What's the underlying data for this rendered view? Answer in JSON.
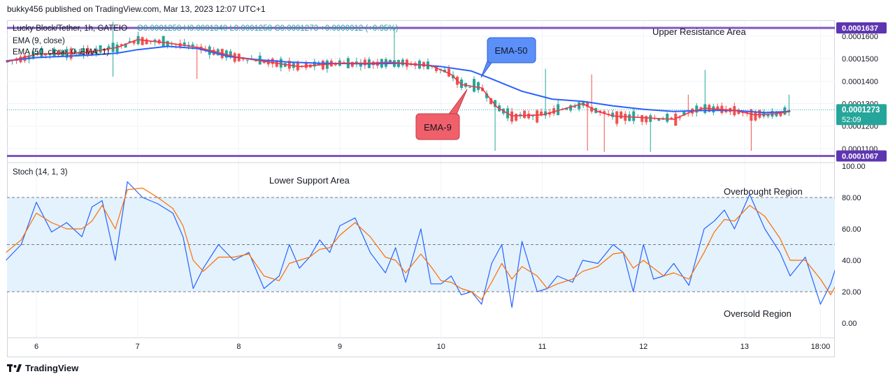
{
  "header": {
    "text": "bukky456 published on TradingView.com, Mar 13, 2023 12:07 UTC+1"
  },
  "legend": {
    "title": "Lucky Block/Tether, 1h, GATEIO",
    "ohlc": "O0.0001258  H0.0001340  L0.0001258  C0.0001273  +0.0000012 (+0.95%)",
    "ema9": "EMA (9, close)",
    "ema50": "EMA (50, close, 0, EMA, 1)"
  },
  "stoch_legend": "Stoch (14, 1, 3)",
  "annotations": {
    "upper_resistance": "Upper Resistance Area",
    "lower_support": "Lower Support Area",
    "overbought": "Overbought Region",
    "oversold": "Oversold Region",
    "ema50_callout": "EMA-50",
    "ema9_callout": "EMA-9"
  },
  "footer": {
    "brand": "TradingView",
    "logo_text": "17"
  },
  "colors": {
    "up": "#26a69a",
    "down": "#ef5350",
    "ema9": "#f23645",
    "ema50": "#2962ff",
    "resistance_line": "#7e57c2",
    "stoch_k": "#2962ff",
    "stoch_d": "#ff6d00",
    "stoch_band": "#e3f2fd",
    "ema50_callout": "#5b8ff9",
    "ema9_callout": "#f0606a"
  },
  "chart_data": [
    {
      "type": "candlestick",
      "title": "Lucky Block/Tether, 1h, GATEIO",
      "y_unit": "USDT",
      "y_ticks": [
        "0.0001600",
        "0.0001500",
        "0.0001400",
        "0.0001300",
        "0.0001200",
        "0.0001100"
      ],
      "ylim": [
        0.000105,
        0.0001665
      ],
      "x_ticks": [
        "6",
        "7",
        "8",
        "9",
        "10",
        "11",
        "12",
        "13",
        "18:00"
      ],
      "last_price": "0.0001273",
      "countdown": "52:09",
      "resistance_label": "0.0001637",
      "support_label": "0.0001067",
      "resistance_level": 0.0001637,
      "support_level": 0.0001067,
      "ohlc_last": {
        "open": 0.0001258,
        "high": 0.000134,
        "low": 0.0001258,
        "close": 0.0001273,
        "change": 1.2e-06,
        "change_pct": 0.95
      },
      "ema9_path": [
        [
          5.7,
          0.0001485
        ],
        [
          6.0,
          0.000152
        ],
        [
          6.5,
          0.0001528
        ],
        [
          6.8,
          0.000155
        ],
        [
          7.0,
          0.0001585
        ],
        [
          7.3,
          0.000157
        ],
        [
          7.6,
          0.000155
        ],
        [
          8.0,
          0.0001505
        ],
        [
          8.3,
          0.0001485
        ],
        [
          8.6,
          0.0001465
        ],
        [
          9.0,
          0.000148
        ],
        [
          9.3,
          0.000148
        ],
        [
          9.5,
          0.0001485
        ],
        [
          9.6,
          0.000148
        ],
        [
          9.9,
          0.000147
        ],
        [
          10.1,
          0.000143
        ],
        [
          10.2,
          0.0001385
        ],
        [
          10.4,
          0.000137
        ],
        [
          10.55,
          0.0001285
        ],
        [
          10.7,
          0.0001245
        ],
        [
          11.0,
          0.000125
        ],
        [
          11.2,
          0.0001275
        ],
        [
          11.4,
          0.00013
        ],
        [
          11.55,
          0.0001265
        ],
        [
          11.7,
          0.0001245
        ],
        [
          11.9,
          0.000124
        ],
        [
          12.1,
          0.0001235
        ],
        [
          12.3,
          0.000123
        ],
        [
          12.45,
          0.000126
        ],
        [
          12.6,
          0.000128
        ],
        [
          12.9,
          0.000127
        ],
        [
          13.1,
          0.000125
        ],
        [
          13.3,
          0.0001255
        ],
        [
          13.45,
          0.0001265
        ]
      ],
      "ema50_path": [
        [
          5.7,
          0.000149
        ],
        [
          6.0,
          0.0001505
        ],
        [
          6.5,
          0.0001515
        ],
        [
          6.8,
          0.0001525
        ],
        [
          7.0,
          0.000154
        ],
        [
          7.3,
          0.0001555
        ],
        [
          7.6,
          0.0001545
        ],
        [
          7.9,
          0.000151
        ],
        [
          8.2,
          0.0001495
        ],
        [
          8.5,
          0.0001485
        ],
        [
          8.8,
          0.000148
        ],
        [
          9.3,
          0.0001477
        ],
        [
          9.6,
          0.000148
        ],
        [
          10.0,
          0.0001465
        ],
        [
          10.3,
          0.0001445
        ],
        [
          10.5,
          0.000141
        ],
        [
          10.8,
          0.0001355
        ],
        [
          11.1,
          0.000132
        ],
        [
          11.4,
          0.000131
        ],
        [
          11.7,
          0.000129
        ],
        [
          12.0,
          0.0001275
        ],
        [
          12.3,
          0.0001265
        ],
        [
          12.6,
          0.000127
        ],
        [
          12.9,
          0.000127
        ],
        [
          13.2,
          0.000126
        ],
        [
          13.45,
          0.0001265
        ]
      ]
    },
    {
      "type": "line",
      "title": "Stoch (14, 1, 3)",
      "y_ticks": [
        "100.00",
        "80.00",
        "60.00",
        "40.00",
        "20.00",
        "0.00"
      ],
      "ylim": [
        -10,
        100
      ],
      "overbought_level": 80,
      "oversold_level": 20,
      "middle_level": 50,
      "x_ticks": [
        "6",
        "7",
        "8",
        "9",
        "10",
        "11",
        "12",
        "13",
        "18:00"
      ],
      "series": [
        {
          "key": "k",
          "values": [
            [
              5.7,
              40
            ],
            [
              5.85,
              50
            ],
            [
              6.0,
              77
            ],
            [
              6.15,
              58
            ],
            [
              6.3,
              64
            ],
            [
              6.45,
              55
            ],
            [
              6.55,
              74
            ],
            [
              6.65,
              78
            ],
            [
              6.78,
              40
            ],
            [
              6.9,
              90
            ],
            [
              7.05,
              80
            ],
            [
              7.2,
              76
            ],
            [
              7.35,
              70
            ],
            [
              7.45,
              55
            ],
            [
              7.55,
              22
            ],
            [
              7.65,
              35
            ],
            [
              7.8,
              50
            ],
            [
              7.95,
              40
            ],
            [
              8.1,
              45
            ],
            [
              8.25,
              22
            ],
            [
              8.4,
              30
            ],
            [
              8.5,
              50
            ],
            [
              8.6,
              35
            ],
            [
              8.7,
              42
            ],
            [
              8.8,
              53
            ],
            [
              8.9,
              45
            ],
            [
              9.0,
              62
            ],
            [
              9.15,
              67
            ],
            [
              9.3,
              45
            ],
            [
              9.45,
              32
            ],
            [
              9.55,
              48
            ],
            [
              9.65,
              26
            ],
            [
              9.8,
              60
            ],
            [
              9.9,
              25
            ],
            [
              10.0,
              25
            ],
            [
              10.1,
              30
            ],
            [
              10.2,
              18
            ],
            [
              10.3,
              20
            ],
            [
              10.4,
              12
            ],
            [
              10.5,
              38
            ],
            [
              10.6,
              50
            ],
            [
              10.7,
              10
            ],
            [
              10.8,
              52
            ],
            [
              10.95,
              20
            ],
            [
              11.05,
              22
            ],
            [
              11.15,
              30
            ],
            [
              11.3,
              26
            ],
            [
              11.4,
              40
            ],
            [
              11.55,
              38
            ],
            [
              11.7,
              50
            ],
            [
              11.8,
              45
            ],
            [
              11.9,
              20
            ],
            [
              12.0,
              50
            ],
            [
              12.1,
              28
            ],
            [
              12.2,
              30
            ],
            [
              12.3,
              38
            ],
            [
              12.45,
              24
            ],
            [
              12.6,
              60
            ],
            [
              12.7,
              65
            ],
            [
              12.8,
              72
            ],
            [
              12.9,
              60
            ],
            [
              13.05,
              82
            ],
            [
              13.2,
              60
            ],
            [
              13.35,
              45
            ],
            [
              13.45,
              30
            ],
            [
              13.6,
              42
            ],
            [
              13.75,
              12
            ],
            [
              13.85,
              25
            ],
            [
              14.0,
              55
            ],
            [
              14.1,
              70
            ],
            [
              14.25,
              72
            ],
            [
              14.4,
              70
            ]
          ]
        },
        {
          "key": "d",
          "values": [
            [
              5.7,
              45
            ],
            [
              5.85,
              53
            ],
            [
              6.0,
              70
            ],
            [
              6.15,
              64
            ],
            [
              6.3,
              60
            ],
            [
              6.45,
              60
            ],
            [
              6.55,
              65
            ],
            [
              6.65,
              75
            ],
            [
              6.78,
              60
            ],
            [
              6.9,
              85
            ],
            [
              7.05,
              86
            ],
            [
              7.2,
              80
            ],
            [
              7.35,
              73
            ],
            [
              7.45,
              62
            ],
            [
              7.55,
              40
            ],
            [
              7.65,
              33
            ],
            [
              7.8,
              42
            ],
            [
              7.95,
              42
            ],
            [
              8.1,
              44
            ],
            [
              8.25,
              30
            ],
            [
              8.4,
              27
            ],
            [
              8.5,
              38
            ],
            [
              8.6,
              40
            ],
            [
              8.7,
              42
            ],
            [
              8.8,
              47
            ],
            [
              8.9,
              48
            ],
            [
              9.0,
              56
            ],
            [
              9.15,
              64
            ],
            [
              9.3,
              55
            ],
            [
              9.45,
              42
            ],
            [
              9.55,
              40
            ],
            [
              9.65,
              32
            ],
            [
              9.8,
              44
            ],
            [
              9.9,
              36
            ],
            [
              10.0,
              27
            ],
            [
              10.1,
              26
            ],
            [
              10.2,
              22
            ],
            [
              10.3,
              20
            ],
            [
              10.4,
              15
            ],
            [
              10.5,
              26
            ],
            [
              10.6,
              38
            ],
            [
              10.7,
              28
            ],
            [
              10.8,
              36
            ],
            [
              10.95,
              30
            ],
            [
              11.05,
              22
            ],
            [
              11.15,
              25
            ],
            [
              11.3,
              28
            ],
            [
              11.4,
              33
            ],
            [
              11.55,
              36
            ],
            [
              11.7,
              44
            ],
            [
              11.8,
              45
            ],
            [
              11.9,
              35
            ],
            [
              12.0,
              40
            ],
            [
              12.1,
              35
            ],
            [
              12.2,
              30
            ],
            [
              12.3,
              32
            ],
            [
              12.45,
              28
            ],
            [
              12.6,
              45
            ],
            [
              12.7,
              58
            ],
            [
              12.8,
              66
            ],
            [
              12.9,
              65
            ],
            [
              13.05,
              75
            ],
            [
              13.2,
              68
            ],
            [
              13.35,
              54
            ],
            [
              13.45,
              40
            ],
            [
              13.6,
              40
            ],
            [
              13.75,
              28
            ],
            [
              13.85,
              18
            ],
            [
              14.0,
              35
            ],
            [
              14.1,
              55
            ],
            [
              14.25,
              68
            ],
            [
              14.4,
              71
            ]
          ]
        }
      ]
    }
  ]
}
